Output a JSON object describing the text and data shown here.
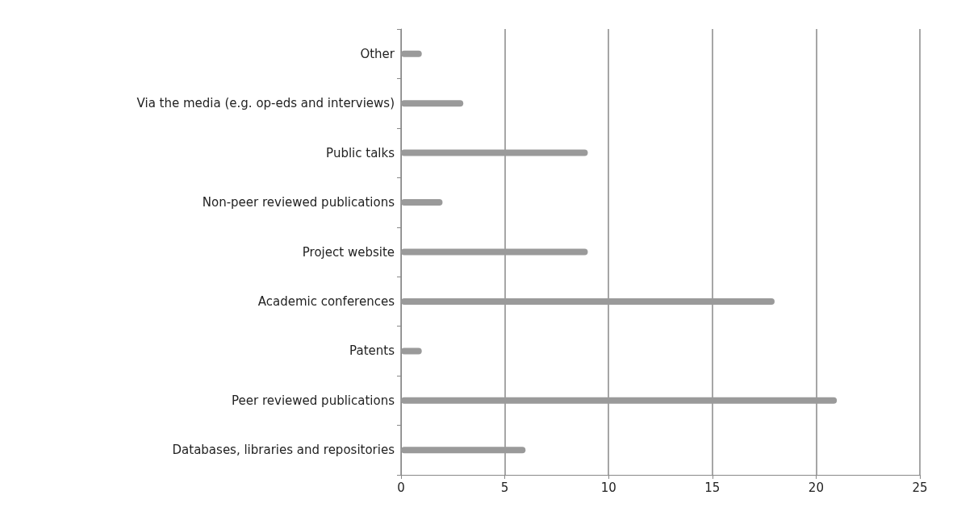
{
  "chart_data": {
    "type": "bar",
    "orientation": "horizontal",
    "categories": [
      "Other",
      "Via the media (e.g. op-eds and interviews)",
      "Public talks",
      "Non-peer reviewed publications",
      "Project website",
      "Academic conferences",
      "Patents",
      "Peer reviewed publications",
      "Databases, libraries and repositories"
    ],
    "values": [
      1,
      3,
      9,
      2,
      9,
      18,
      1,
      21,
      6
    ],
    "color": "#9a9a9a",
    "xlim": [
      0,
      25
    ],
    "xticks": [
      0,
      5,
      10,
      15,
      20,
      25
    ],
    "grid": "x"
  }
}
